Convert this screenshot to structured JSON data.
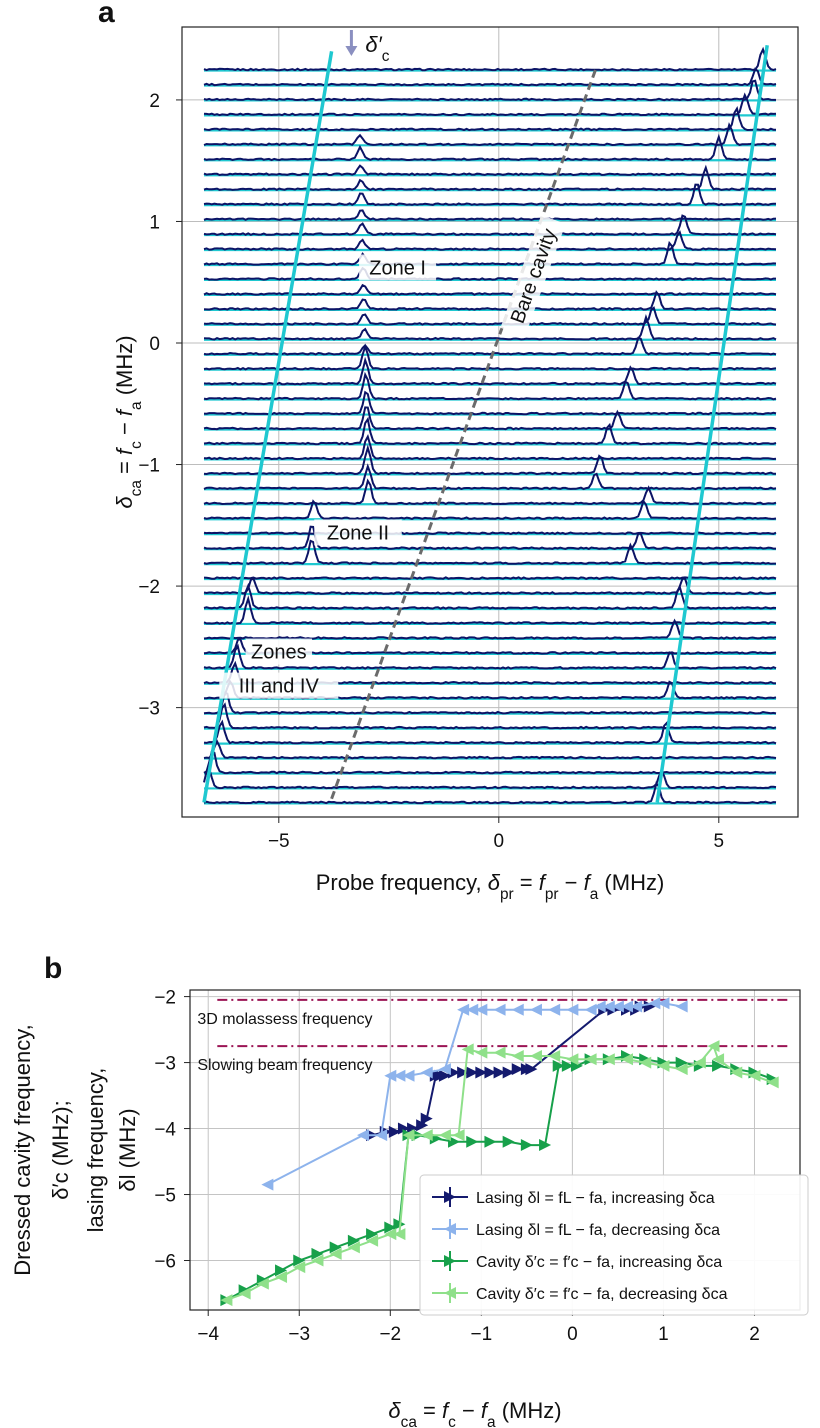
{
  "panel_labels": {
    "a": "a",
    "b": "b"
  },
  "colors": {
    "lasing_increasing": "#141a6e",
    "lasing_decreasing": "#8db3ec",
    "cavity_increasing": "#17a04a",
    "cavity_decreasing": "#8fe08a",
    "cyan_trace": "#1fc8d0",
    "navy_trace": "#0c1466",
    "bare_cavity": "#6b6b6b",
    "hline": "#9b1454",
    "annotation_arrow": "#8a8fc0"
  },
  "chart_data": [
    {
      "type": "line",
      "title": "",
      "xlabel": "Probe frequency, δ_pr = f_pr − f_a (MHz)",
      "ylabel": "δ_ca = f_c − f_a (MHz)",
      "xlim": [
        -7.2,
        6.8
      ],
      "ylim": [
        -3.9,
        2.6
      ],
      "xticks": [
        -5,
        0,
        5
      ],
      "yticks": [
        2,
        1,
        0,
        -1,
        -2,
        -3
      ],
      "xtick_labels": [
        "−5",
        "0",
        "5"
      ],
      "ytick_labels": [
        "2",
        "1",
        "0",
        "−1",
        "−2",
        "−3"
      ],
      "grid": true,
      "annotation_arrow": "δ′c",
      "zone_labels": [
        {
          "text": "Zone I",
          "x": -2.3,
          "y": 0.58
        },
        {
          "text": "Zone II",
          "x": -3.2,
          "y": -1.6
        },
        {
          "text": "Zones",
          "x": -5.0,
          "y": -2.58
        },
        {
          "text": "III and IV",
          "x": -5.0,
          "y": -2.86
        }
      ],
      "bare_cavity_label": "Bare cavity",
      "bare_cavity_line": {
        "x": [
          -3.8,
          2.2
        ],
        "y": [
          -3.75,
          2.25
        ]
      },
      "trace_series": {
        "n_traces": 50,
        "baseline_top": 2.25,
        "baseline_bottom": -3.78,
        "x_start": -6.7,
        "x_end": 6.3,
        "lower_polariton_fit": {
          "x": [
            -6.7,
            -3.8
          ],
          "y": [
            -3.78,
            2.4
          ]
        },
        "upper_polariton_fit": {
          "x": [
            3.6,
            6.1
          ],
          "y": [
            -3.78,
            2.45
          ]
        },
        "middle_peak": {
          "x_at_top": -3.2,
          "x_at_bottom": -2.8
        },
        "navy_peaks": [
          {
            "row": 0,
            "x": 6.0
          },
          {
            "row": 1,
            "x": 5.85
          },
          {
            "row": 2,
            "x": 5.8
          },
          {
            "row": 3,
            "x": 5.6
          },
          {
            "row": 4,
            "x": 5.4
          },
          {
            "row": 5,
            "x": 5.25
          },
          {
            "row": 6,
            "x": 5.0
          },
          {
            "row": 8,
            "x": 4.7
          },
          {
            "row": 9,
            "x": 4.5
          },
          {
            "row": 11,
            "x": 4.2
          },
          {
            "row": 12,
            "x": 4.1
          },
          {
            "row": 13,
            "x": 3.9
          },
          {
            "row": 16,
            "x": 3.6
          },
          {
            "row": 17,
            "x": 3.5
          },
          {
            "row": 18,
            "x": 3.35
          },
          {
            "row": 19,
            "x": 3.2
          },
          {
            "row": 21,
            "x": 3.0
          },
          {
            "row": 22,
            "x": 2.9
          },
          {
            "row": 24,
            "x": 2.7
          },
          {
            "row": 25,
            "x": 2.5
          },
          {
            "row": 27,
            "x": 2.3
          },
          {
            "row": 28,
            "x": 2.2
          },
          {
            "row": 29,
            "x": 3.4
          },
          {
            "row": 30,
            "x": 3.3
          },
          {
            "row": 32,
            "x": 3.2
          },
          {
            "row": 33,
            "x": 3.0
          },
          {
            "row": 35,
            "x": 4.2
          },
          {
            "row": 36,
            "x": 4.1
          },
          {
            "row": 38,
            "x": 4.0
          },
          {
            "row": 40,
            "x": 3.9
          },
          {
            "row": 42,
            "x": 3.9
          },
          {
            "row": 45,
            "x": 3.8
          },
          {
            "row": 48,
            "x": 3.7
          },
          {
            "row": 49,
            "x": 3.6
          }
        ],
        "navy_left_peaks": [
          {
            "row": 30,
            "x": -4.2
          },
          {
            "row": 32,
            "x": -4.25
          },
          {
            "row": 33,
            "x": -4.25
          },
          {
            "row": 35,
            "x": -5.6
          },
          {
            "row": 36,
            "x": -5.7
          },
          {
            "row": 37,
            "x": -5.7
          },
          {
            "row": 39,
            "x": -5.9
          },
          {
            "row": 40,
            "x": -5.95
          },
          {
            "row": 41,
            "x": -6.0
          },
          {
            "row": 42,
            "x": -6.1
          },
          {
            "row": 43,
            "x": -6.2
          },
          {
            "row": 44,
            "x": -6.25
          },
          {
            "row": 45,
            "x": -6.3
          },
          {
            "row": 46,
            "x": -6.4
          },
          {
            "row": 47,
            "x": -6.5
          },
          {
            "row": 48,
            "x": -6.6
          }
        ]
      }
    },
    {
      "type": "line",
      "title": "",
      "xlabel": "δ_ca = f_c − f_a (MHz)",
      "ylabel_lines": [
        "Dressed cavity frequency,",
        "δ′c (MHz);",
        "lasing frequency,",
        "δl (MHz)"
      ],
      "xlim": [
        -4.2,
        2.5
      ],
      "ylim": [
        -6.75,
        -1.9
      ],
      "xticks": [
        -4,
        -3,
        -2,
        -1,
        0,
        1,
        2
      ],
      "yticks": [
        -2,
        -3,
        -4,
        -5,
        -6
      ],
      "xtick_labels": [
        "−4",
        "−3",
        "−2",
        "−1",
        "0",
        "1",
        "2"
      ],
      "ytick_labels": [
        "−2",
        "−3",
        "−4",
        "−5",
        "−6"
      ],
      "grid": true,
      "horizontal_lines": [
        {
          "label": "3D molassess frequency",
          "y": -2.05,
          "xmin": -3.9,
          "xmax": 2.4
        },
        {
          "label": "Slowing beam frequency",
          "y": -2.75,
          "xmin": -3.9,
          "xmax": 2.4
        }
      ],
      "legend_placement": "bottom-right",
      "series": [
        {
          "name": "Lasing δl = fL − fa, increasing δca",
          "color_key": "lasing_increasing",
          "marker": ">",
          "x": [
            -2.2,
            -2.05,
            -1.95,
            -1.85,
            -1.75,
            -1.65,
            -1.6,
            -1.5,
            -1.45,
            -1.4,
            -1.3,
            -1.2,
            -1.1,
            -1.0,
            -0.9,
            -0.8,
            -0.7,
            -0.6,
            -0.5,
            -0.45,
            0.35,
            0.45,
            0.6,
            0.7,
            0.75,
            0.85
          ],
          "y": [
            -4.1,
            -4.05,
            -4.05,
            -4.0,
            -4.0,
            -3.95,
            -3.85,
            -3.2,
            -3.2,
            -3.2,
            -3.15,
            -3.15,
            -3.15,
            -3.15,
            -3.15,
            -3.15,
            -3.15,
            -3.1,
            -3.1,
            -3.1,
            -2.2,
            -2.2,
            -2.2,
            -2.2,
            -2.15,
            -2.15
          ]
        },
        {
          "name": "Lasing δl = fL − fa, decreasing δca",
          "color_key": "lasing_decreasing",
          "marker": "<",
          "x": [
            1.2,
            1.0,
            0.9,
            0.7,
            0.6,
            0.5,
            0.4,
            0.3,
            0.2,
            0.0,
            -0.2,
            -0.4,
            -0.6,
            -0.8,
            -1.0,
            -1.1,
            -1.2,
            -1.4,
            -1.6,
            -1.8,
            -1.9,
            -2.0,
            -2.1,
            -2.3,
            -3.35
          ],
          "y": [
            -2.15,
            -2.1,
            -2.1,
            -2.15,
            -2.15,
            -2.15,
            -2.15,
            -2.15,
            -2.2,
            -2.2,
            -2.2,
            -2.2,
            -2.2,
            -2.2,
            -2.2,
            -2.2,
            -2.2,
            -3.1,
            -3.15,
            -3.2,
            -3.2,
            -3.2,
            -4.1,
            -4.1,
            -4.85
          ]
        },
        {
          "name": "Cavity δ′c = f′c − fa, increasing δca",
          "color_key": "cavity_increasing",
          "marker": ">",
          "x": [
            -3.8,
            -3.6,
            -3.4,
            -3.2,
            -3.0,
            -2.8,
            -2.6,
            -2.4,
            -2.2,
            -2.0,
            -1.9,
            -1.8,
            -1.7,
            -1.5,
            -1.3,
            -1.1,
            -0.9,
            -0.7,
            -0.5,
            -0.3,
            -0.15,
            -0.05,
            0.05,
            0.2,
            0.4,
            0.6,
            0.8,
            1.0,
            1.2,
            1.4,
            1.6,
            1.8,
            2.0,
            2.2
          ],
          "y": [
            -6.6,
            -6.45,
            -6.3,
            -6.15,
            -6.0,
            -5.9,
            -5.8,
            -5.7,
            -5.6,
            -5.5,
            -5.45,
            -4.1,
            -4.1,
            -4.15,
            -4.2,
            -4.2,
            -4.2,
            -4.2,
            -4.25,
            -4.25,
            -3.05,
            -3.05,
            -3.05,
            -2.95,
            -2.95,
            -2.9,
            -2.95,
            -3.0,
            -3.0,
            -3.05,
            -3.05,
            -3.1,
            -3.15,
            -3.25
          ]
        },
        {
          "name": "Cavity δ′c = f′c − fa, decreasing δca",
          "color_key": "cavity_decreasing",
          "marker": "<",
          "x": [
            2.2,
            2.0,
            1.8,
            1.6,
            1.55,
            1.4,
            1.2,
            1.0,
            0.8,
            0.6,
            0.4,
            0.2,
            0.0,
            -0.2,
            -0.4,
            -0.6,
            -0.8,
            -1.0,
            -1.15,
            -1.25,
            -1.4,
            -1.6,
            -1.8,
            -1.9,
            -2.0,
            -2.2,
            -2.4,
            -2.6,
            -2.8,
            -3.0,
            -3.2,
            -3.4,
            -3.6,
            -3.8
          ],
          "y": [
            -3.3,
            -3.2,
            -3.15,
            -2.95,
            -2.75,
            -3.0,
            -3.1,
            -3.05,
            -3.0,
            -2.95,
            -2.95,
            -2.95,
            -2.95,
            -2.9,
            -2.9,
            -2.9,
            -2.85,
            -2.85,
            -2.8,
            -4.1,
            -4.1,
            -4.1,
            -4.1,
            -5.6,
            -5.6,
            -5.7,
            -5.8,
            -5.9,
            -6.0,
            -6.1,
            -6.25,
            -6.35,
            -6.5,
            -6.6
          ]
        }
      ]
    }
  ]
}
